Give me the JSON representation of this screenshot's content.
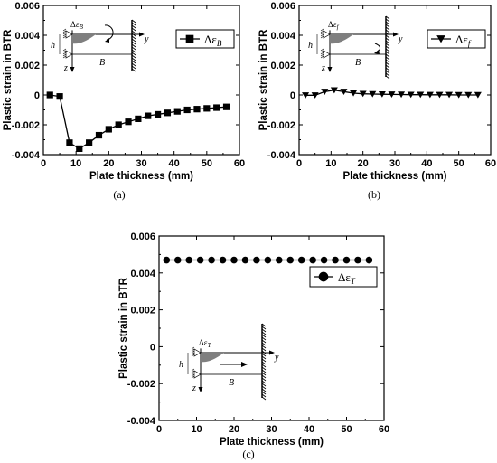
{
  "chart_data": [
    {
      "id": "a",
      "type": "line",
      "caption": "(a)",
      "xlabel": "Plate thickness (mm)",
      "ylabel": "Plastic strain in BTR",
      "xlim": [
        0,
        60
      ],
      "ylim": [
        -0.004,
        0.006
      ],
      "xticks": [
        "0",
        "10",
        "20",
        "30",
        "40",
        "50",
        "60"
      ],
      "yticks": [
        "0.006",
        "0.004",
        "0.002",
        "0",
        "-0.002",
        "-0.004"
      ],
      "legend_position": "top-right",
      "marker": "square",
      "series": [
        {
          "name": "Δε_B",
          "legend_main": "Δε",
          "legend_sub": "B",
          "x": [
            2,
            5,
            8,
            11,
            14,
            17,
            20,
            23,
            26,
            29,
            32,
            35,
            38,
            41,
            44,
            47,
            50,
            53,
            56
          ],
          "y": [
            0.0,
            -0.0001,
            -0.0032,
            -0.0036,
            -0.0032,
            -0.0027,
            -0.0023,
            -0.002,
            -0.0018,
            -0.0016,
            -0.0014,
            -0.0013,
            -0.0012,
            -0.0011,
            -0.001,
            -0.00095,
            -0.0009,
            -0.00085,
            -0.0008
          ]
        }
      ],
      "inset": {
        "strain": "Δε",
        "strain_sub": "B",
        "h": "h",
        "B": "B",
        "y": "y",
        "z": "z"
      }
    },
    {
      "id": "b",
      "type": "line",
      "caption": "(b)",
      "xlabel": "Plate thickness (mm)",
      "ylabel": "Plastic strain in BTR",
      "xlim": [
        0,
        60
      ],
      "ylim": [
        -0.004,
        0.006
      ],
      "xticks": [
        "0",
        "10",
        "20",
        "30",
        "40",
        "50",
        "60"
      ],
      "yticks": [
        "0.006",
        "0.004",
        "0.002",
        "0",
        "-0.002",
        "-0.004"
      ],
      "legend_position": "top-right",
      "marker": "triangle-down",
      "series": [
        {
          "name": "Δε_f",
          "legend_main": "Δε",
          "legend_sub": "f",
          "x": [
            2,
            5,
            8,
            11,
            14,
            17,
            20,
            23,
            26,
            29,
            32,
            35,
            38,
            41,
            44,
            47,
            50,
            53,
            56
          ],
          "y": [
            -2e-05,
            -2e-05,
            0.00022,
            0.00032,
            0.00022,
            0.00012,
            8e-05,
            6e-05,
            5e-05,
            4e-05,
            3e-05,
            2e-05,
            2e-05,
            1e-05,
            1e-05,
            1e-05,
            0.0,
            0.0,
            0.0
          ]
        }
      ],
      "inset": {
        "strain": "Δε",
        "strain_sub": "f",
        "h": "h",
        "B": "B",
        "y": "y",
        "z": "z"
      }
    },
    {
      "id": "c",
      "type": "line",
      "caption": "(c)",
      "xlabel": "Plate thickness (mm)",
      "ylabel": "Plastic strain in BTR",
      "xlim": [
        0,
        60
      ],
      "ylim": [
        -0.004,
        0.006
      ],
      "xticks": [
        "0",
        "10",
        "20",
        "30",
        "40",
        "50",
        "60"
      ],
      "yticks": [
        "0.006",
        "0.004",
        "0.002",
        "0",
        "-0.002",
        "-0.004"
      ],
      "legend_position": "top-right",
      "marker": "circle",
      "series": [
        {
          "name": "Δε_T",
          "legend_main": "Δε",
          "legend_sub": "T",
          "x": [
            2,
            5,
            8,
            11,
            14,
            17,
            20,
            23,
            26,
            29,
            32,
            35,
            38,
            41,
            44,
            47,
            50,
            53,
            56
          ],
          "y": [
            0.0047,
            0.0047,
            0.0047,
            0.0047,
            0.0047,
            0.0047,
            0.0047,
            0.0047,
            0.0047,
            0.0047,
            0.0047,
            0.0047,
            0.0047,
            0.0047,
            0.0047,
            0.0047,
            0.0047,
            0.0047,
            0.0047
          ]
        }
      ],
      "inset": {
        "strain": "Δε",
        "strain_sub": "T",
        "h": "h",
        "B": "B",
        "y": "y",
        "z": "z"
      }
    }
  ]
}
